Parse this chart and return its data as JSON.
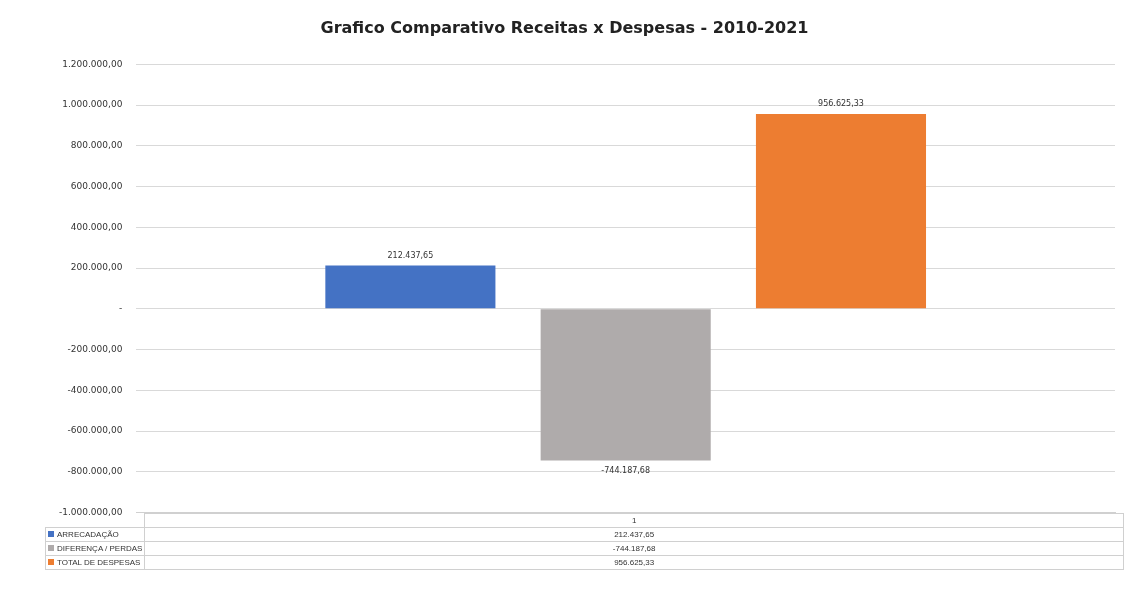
{
  "chart_data": {
    "type": "bar",
    "title": "Grafico Comparativo Receitas x Despesas - 2010-2021",
    "categories": [
      "1"
    ],
    "series": [
      {
        "name": "ARRECADAÇÃO",
        "color": "#4472c4",
        "values": [
          212437.65
        ],
        "value_labels": [
          "212.437,65"
        ]
      },
      {
        "name": "DIFERENÇA / PERDAS",
        "color": "#afabab",
        "values": [
          -744187.68
        ],
        "value_labels": [
          "-744.187,68"
        ]
      },
      {
        "name": "TOTAL DE DESPESAS",
        "color": "#ed7d31",
        "values": [
          956625.33
        ],
        "value_labels": [
          "956.625,33"
        ]
      }
    ],
    "ylim": [
      -1000000,
      1200000
    ],
    "yticks": [
      {
        "value": -1000000,
        "label": "-1.000.000,00"
      },
      {
        "value": -800000,
        "label": "-800.000,00"
      },
      {
        "value": -600000,
        "label": "-600.000,00"
      },
      {
        "value": -400000,
        "label": "-400.000,00"
      },
      {
        "value": -200000,
        "label": "-200.000,00"
      },
      {
        "value": 0,
        "label": "-"
      },
      {
        "value": 200000,
        "label": "200.000,00"
      },
      {
        "value": 400000,
        "label": "400.000,00"
      },
      {
        "value": 600000,
        "label": "600.000,00"
      },
      {
        "value": 800000,
        "label": "800.000,00"
      },
      {
        "value": 1000000,
        "label": "1.000.000,00"
      },
      {
        "value": 1200000,
        "label": "1.200.000,00"
      }
    ],
    "grid": "y",
    "legend": "bottom"
  }
}
